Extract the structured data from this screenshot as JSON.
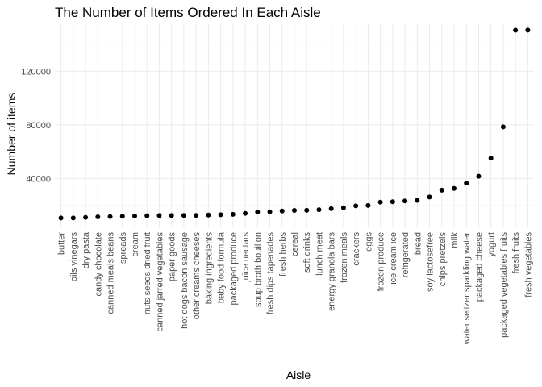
{
  "chart_data": {
    "type": "scatter",
    "title": "The Number of Items Ordered In Each Aisle",
    "xlabel": "Aisle",
    "ylabel": "Number of items",
    "ylim": [
      3000,
      155000
    ],
    "yticks": [
      40000,
      80000,
      120000
    ],
    "ytick_labels": [
      "40000",
      "80000",
      "120000"
    ],
    "grid": true,
    "theme": "minimal",
    "point_color": "#000000",
    "categories": [
      "butter",
      "oils vinegars",
      "dry pasta",
      "candy chocolate",
      "canned meals beans",
      "spreads",
      "cream",
      "nuts seeds dried fruit",
      "canned jarred vegetables",
      "paper goods",
      "hot dogs bacon sausage",
      "other creams cheeses",
      "baking ingredients",
      "baby food formula",
      "packaged produce",
      "juice nectars",
      "soup broth bouillon",
      "fresh dips tapenades",
      "fresh herbs",
      "cereal",
      "soft drinks",
      "lunch meat",
      "energy granola bars",
      "frozen meals",
      "crackers",
      "eggs",
      "frozen produce",
      "ice cream ice",
      "refrigerated",
      "bread",
      "soy lactosefree",
      "chips pretzels",
      "milk",
      "water seltzer sparkling water",
      "packaged cheese",
      "yogurt",
      "packaged vegetables fruits",
      "fresh fruits",
      "fresh vegetables"
    ],
    "values": [
      10575,
      10600,
      11000,
      11400,
      11600,
      11900,
      12000,
      12250,
      12400,
      12400,
      12500,
      12500,
      12750,
      13000,
      13300,
      14000,
      15000,
      15150,
      15800,
      16200,
      16300,
      16750,
      17500,
      18200,
      19600,
      19900,
      22400,
      22700,
      23250,
      23700,
      26200,
      31300,
      32600,
      36600,
      41700,
      55200,
      78500,
      150500,
      150600
    ]
  }
}
